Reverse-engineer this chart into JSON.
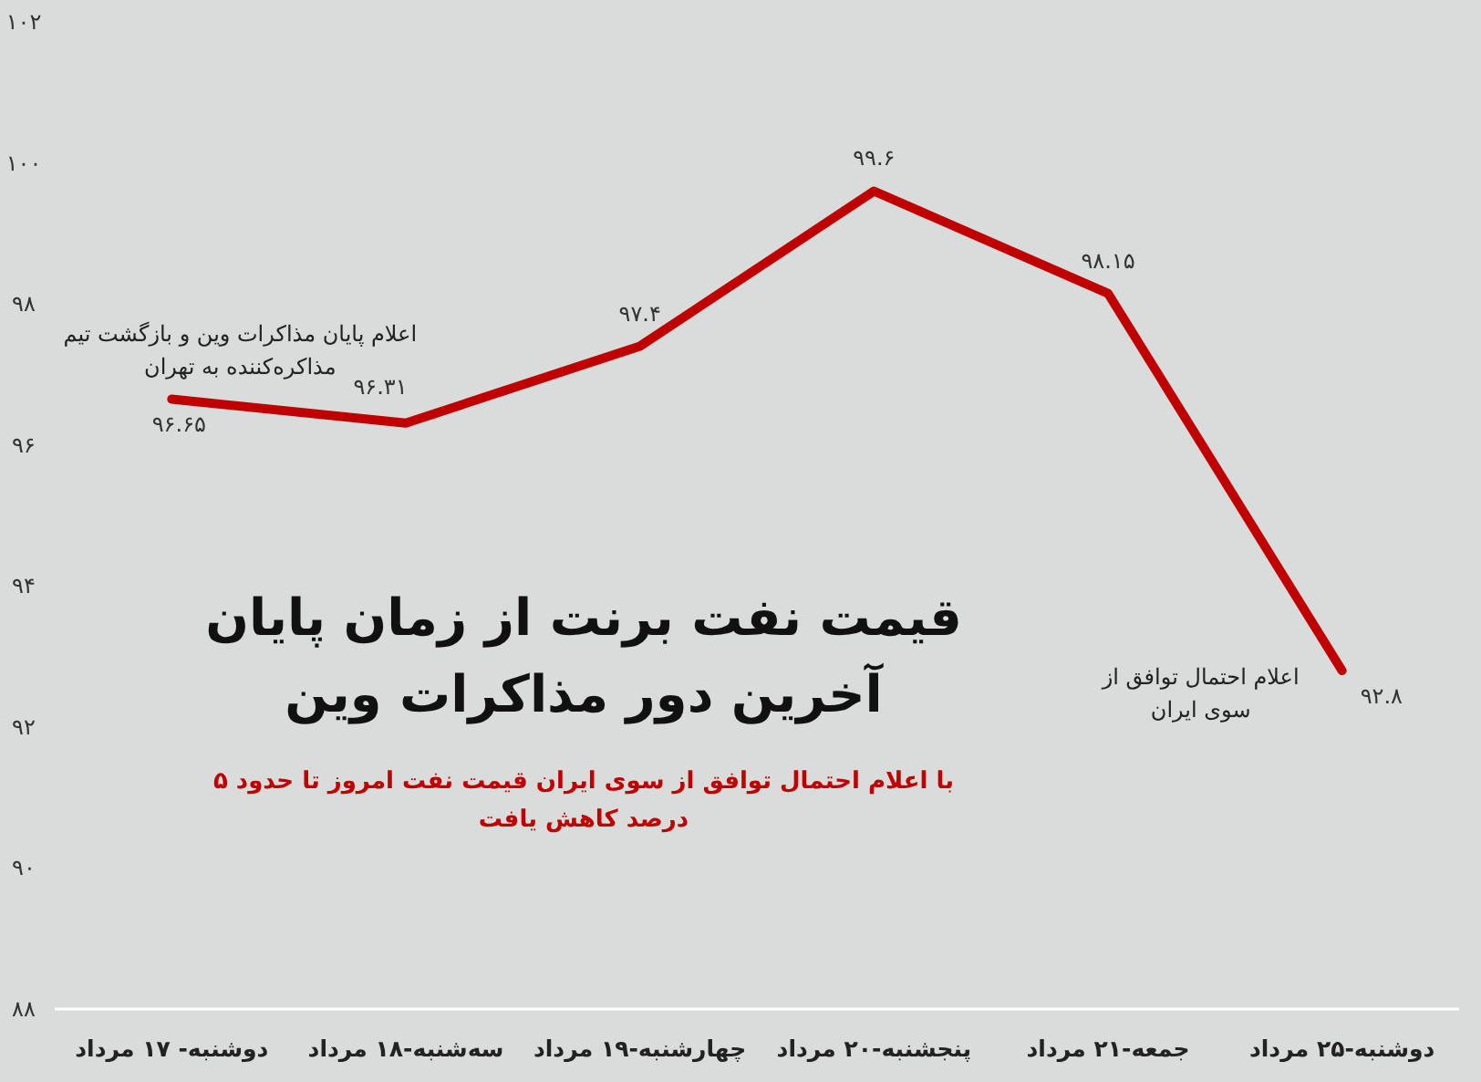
{
  "chart_data": {
    "type": "line",
    "title": "قیمت نفت برنت از زمان پایان آخرین دور مذاکرات وین",
    "subtitle": "با اعلام احتمال توافق از سوی ایران قیمت نفت امروز تا حدود ۵ درصد کاهش یافت",
    "categories": [
      "دوشنبه- ۱۷ مرداد",
      "سه‌شنبه-۱۸ مرداد",
      "چهارشنبه-۱۹ مرداد",
      "پنجشنبه-۲۰ مرداد",
      "جمعه-۲۱ مرداد",
      "دوشنبه-۲۵ مرداد"
    ],
    "series": [
      {
        "color": "#c00000",
        "values": [
          96.65,
          96.31,
          97.4,
          99.6,
          98.15,
          92.8
        ],
        "value_labels": [
          "۹۶.۶۵",
          "۹۶.۳۱",
          "۹۷.۴",
          "۹۹.۶",
          "۹۸.۱۵",
          "۹۲.۸"
        ]
      }
    ],
    "ylim": [
      88,
      102
    ],
    "yticks": [
      {
        "value": 88,
        "label": "۸۸"
      },
      {
        "value": 90,
        "label": "۹۰"
      },
      {
        "value": 92,
        "label": "۹۲"
      },
      {
        "value": 94,
        "label": "۹۴"
      },
      {
        "value": 96,
        "label": "۹۶"
      },
      {
        "value": 98,
        "label": "۹۸"
      },
      {
        "value": 100,
        "label": "۱۰۰"
      },
      {
        "value": 102,
        "label": "۱۰۲"
      }
    ],
    "annotations": [
      {
        "text": "اعلام پایان مذاکرات وین و بازگشت تیم مذاکره‌کننده به تهران",
        "x": "دوشنبه- ۱۷ مرداد",
        "y": 96.65
      },
      {
        "text": "اعلام احتمال توافق از سوی ایران",
        "x": "دوشنبه-۲۵ مرداد",
        "y": 92.8
      }
    ],
    "grid": false,
    "marker": "none",
    "line_style": "solid"
  }
}
